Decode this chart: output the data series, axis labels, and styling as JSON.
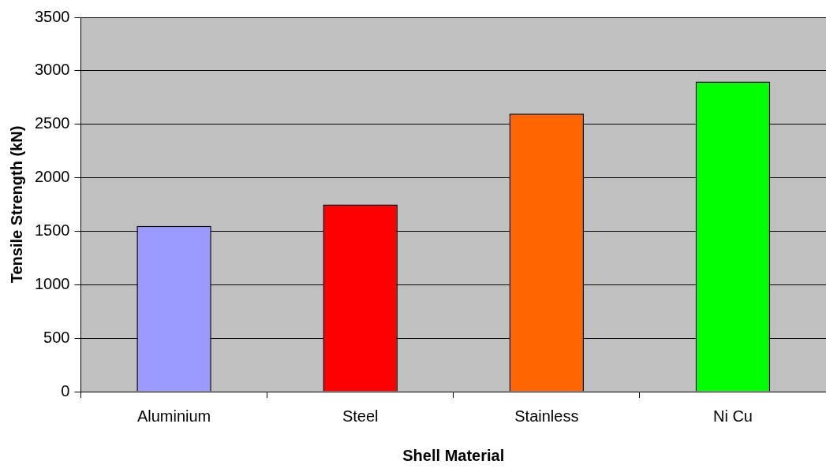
{
  "chart_data": {
    "type": "bar",
    "xlabel": "Shell Material",
    "ylabel": "Tensile Strength (kN)",
    "categories": [
      "Aluminium",
      "Steel",
      "Stainless",
      "Ni Cu"
    ],
    "values": [
      1550,
      1750,
      2600,
      2900
    ],
    "colors": [
      "#9999ff",
      "#ff0000",
      "#ff6600",
      "#00ff00"
    ],
    "ylim": [
      0,
      3500
    ],
    "yticks": [
      0,
      500,
      1000,
      1500,
      2000,
      2500,
      3000,
      3500
    ],
    "grid": "y",
    "legend": false
  }
}
